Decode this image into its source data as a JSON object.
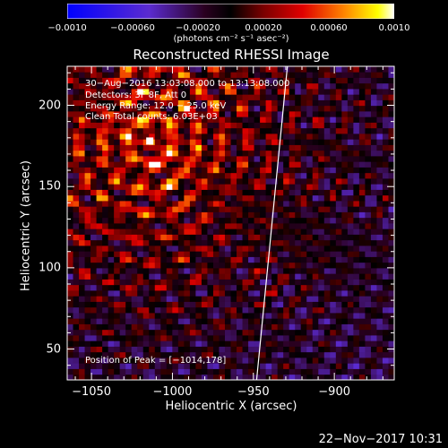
{
  "chart_data": {
    "type": "heatmap",
    "title": "Reconstructed RHESSI Image",
    "xlabel": "Heliocentric X (arcsec)",
    "ylabel": "Heliocentric Y (arcsec)",
    "xlim": [
      -1065,
      -863
    ],
    "ylim": [
      31,
      224
    ],
    "x_ticks": [
      -1050,
      -1000,
      -950,
      -900
    ],
    "x_tick_labels": [
      "−1050",
      "−1000",
      "−950",
      "−900"
    ],
    "y_ticks": [
      50,
      100,
      150,
      200
    ],
    "y_tick_labels": [
      "50",
      "100",
      "150",
      "200"
    ],
    "colorbar": {
      "range": [
        -0.001,
        0.001
      ],
      "tick_labels": [
        "−0.0010",
        "−0.00060",
        "−0.00020",
        "0.00020",
        "0.00060",
        "0.0010"
      ],
      "tick_values": [
        -0.001,
        -0.0006,
        -0.0002,
        0.0002,
        0.0006,
        0.001
      ],
      "label": "(photons cm⁻² s⁻¹ asec⁻²)"
    },
    "peak": {
      "x": -1014,
      "y": 178
    },
    "annotations": [
      "30−Aug−2016 13:03:08.000 to 13:13:08.000",
      "Detectors: 3F 8F, Att 0",
      "Energy Range: 12.0 − 25.0 keV",
      "Clean     Total counts: 6.03E+03"
    ],
    "peak_label": "Position of Peak = [−1014,178]",
    "limb_points": [
      [
        -948,
        31
      ],
      [
        -929,
        224
      ]
    ],
    "grid": false
  },
  "footer": {
    "timestamp": "22−Nov−2017 10:31"
  }
}
